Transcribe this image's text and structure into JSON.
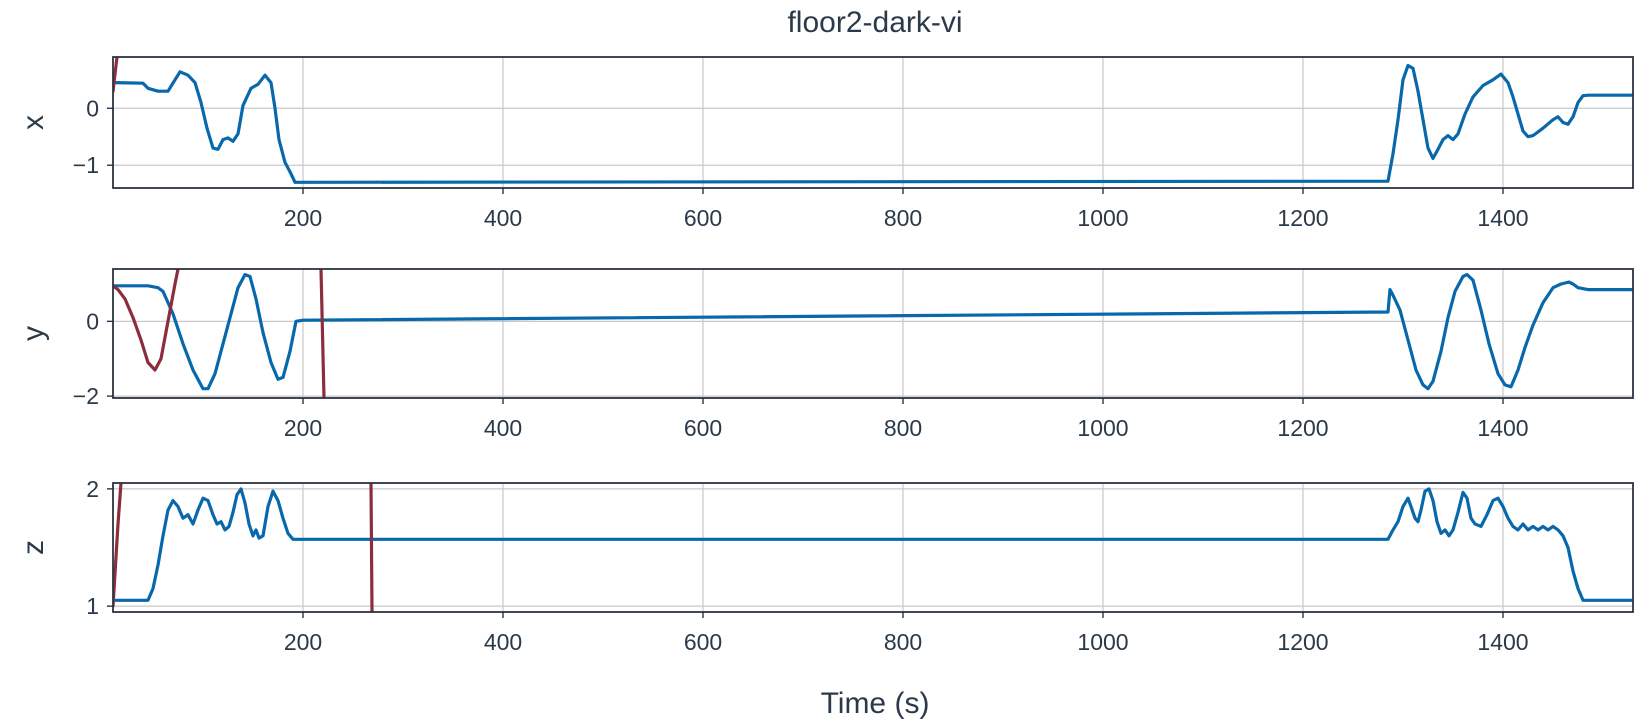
{
  "chart_data": {
    "type": "line",
    "title": "floor2-dark-vi",
    "xlabel": "Time (s)",
    "xlim": [
      10,
      1530
    ],
    "x_ticks": [
      200,
      400,
      600,
      800,
      1000,
      1200,
      1400
    ],
    "grid": true,
    "colors": {
      "series_1": "#0868ac",
      "series_2": "#8c2d3e",
      "text": "#2b3a4a",
      "grid": "#c9c9c9"
    },
    "panels": [
      {
        "ylabel": "x",
        "ylim": [
          -1.4,
          0.9
        ],
        "y_ticks": [
          -1,
          0
        ],
        "series": [
          {
            "color": "#0868ac",
            "points": [
              [
                10,
                0.45
              ],
              [
                40,
                0.44
              ],
              [
                45,
                0.35
              ],
              [
                55,
                0.3
              ],
              [
                65,
                0.3
              ],
              [
                72,
                0.5
              ],
              [
                77,
                0.64
              ],
              [
                85,
                0.58
              ],
              [
                92,
                0.45
              ],
              [
                98,
                0.1
              ],
              [
                104,
                -0.35
              ],
              [
                110,
                -0.7
              ],
              [
                115,
                -0.72
              ],
              [
                120,
                -0.55
              ],
              [
                125,
                -0.52
              ],
              [
                130,
                -0.58
              ],
              [
                135,
                -0.45
              ],
              [
                140,
                0.05
              ],
              [
                148,
                0.35
              ],
              [
                155,
                0.42
              ],
              [
                162,
                0.58
              ],
              [
                168,
                0.45
              ],
              [
                172,
                0.0
              ],
              [
                176,
                -0.55
              ],
              [
                182,
                -0.95
              ],
              [
                188,
                -1.15
              ],
              [
                192,
                -1.3
              ],
              [
                1285,
                -1.28
              ],
              [
                1290,
                -0.8
              ],
              [
                1295,
                -0.2
              ],
              [
                1300,
                0.5
              ],
              [
                1305,
                0.75
              ],
              [
                1310,
                0.7
              ],
              [
                1315,
                0.3
              ],
              [
                1320,
                -0.2
              ],
              [
                1325,
                -0.7
              ],
              [
                1330,
                -0.88
              ],
              [
                1335,
                -0.72
              ],
              [
                1340,
                -0.55
              ],
              [
                1345,
                -0.48
              ],
              [
                1350,
                -0.55
              ],
              [
                1355,
                -0.45
              ],
              [
                1362,
                -0.1
              ],
              [
                1370,
                0.2
              ],
              [
                1380,
                0.4
              ],
              [
                1390,
                0.5
              ],
              [
                1398,
                0.6
              ],
              [
                1405,
                0.45
              ],
              [
                1410,
                0.2
              ],
              [
                1415,
                -0.1
              ],
              [
                1420,
                -0.4
              ],
              [
                1425,
                -0.5
              ],
              [
                1430,
                -0.48
              ],
              [
                1440,
                -0.35
              ],
              [
                1450,
                -0.2
              ],
              [
                1455,
                -0.15
              ],
              [
                1460,
                -0.25
              ],
              [
                1465,
                -0.28
              ],
              [
                1470,
                -0.15
              ],
              [
                1475,
                0.1
              ],
              [
                1480,
                0.22
              ],
              [
                1485,
                0.23
              ],
              [
                1530,
                0.23
              ]
            ]
          },
          {
            "color": "#8c2d3e",
            "points": [
              [
                10,
                0.3
              ],
              [
                12,
                0.6
              ],
              [
                14,
                0.9
              ]
            ]
          }
        ]
      },
      {
        "ylabel": "y",
        "ylim": [
          -2.05,
          1.4
        ],
        "y_ticks": [
          -2,
          0
        ],
        "series": [
          {
            "color": "#0868ac",
            "points": [
              [
                10,
                0.95
              ],
              [
                45,
                0.95
              ],
              [
                55,
                0.9
              ],
              [
                60,
                0.8
              ],
              [
                70,
                0.2
              ],
              [
                80,
                -0.6
              ],
              [
                90,
                -1.3
              ],
              [
                100,
                -1.8
              ],
              [
                105,
                -1.8
              ],
              [
                112,
                -1.4
              ],
              [
                120,
                -0.6
              ],
              [
                128,
                0.2
              ],
              [
                135,
                0.9
              ],
              [
                142,
                1.25
              ],
              [
                147,
                1.2
              ],
              [
                153,
                0.6
              ],
              [
                160,
                -0.3
              ],
              [
                168,
                -1.1
              ],
              [
                175,
                -1.55
              ],
              [
                180,
                -1.5
              ],
              [
                187,
                -0.8
              ],
              [
                193,
                0.0
              ],
              [
                200,
                0.03
              ],
              [
                1285,
                0.25
              ],
              [
                1287,
                0.85
              ],
              [
                1290,
                0.7
              ],
              [
                1297,
                0.3
              ],
              [
                1305,
                -0.5
              ],
              [
                1313,
                -1.3
              ],
              [
                1320,
                -1.7
              ],
              [
                1325,
                -1.8
              ],
              [
                1330,
                -1.6
              ],
              [
                1338,
                -0.8
              ],
              [
                1345,
                0.1
              ],
              [
                1352,
                0.8
              ],
              [
                1360,
                1.2
              ],
              [
                1364,
                1.25
              ],
              [
                1370,
                1.1
              ],
              [
                1378,
                0.3
              ],
              [
                1386,
                -0.6
              ],
              [
                1395,
                -1.4
              ],
              [
                1402,
                -1.7
              ],
              [
                1408,
                -1.75
              ],
              [
                1415,
                -1.3
              ],
              [
                1422,
                -0.7
              ],
              [
                1430,
                -0.1
              ],
              [
                1440,
                0.5
              ],
              [
                1450,
                0.9
              ],
              [
                1458,
                1.0
              ],
              [
                1466,
                1.05
              ],
              [
                1470,
                1.0
              ],
              [
                1475,
                0.9
              ],
              [
                1485,
                0.85
              ],
              [
                1530,
                0.85
              ]
            ]
          },
          {
            "color": "#8c2d3e",
            "points": [
              [
                10,
                0.95
              ],
              [
                15,
                0.85
              ],
              [
                22,
                0.6
              ],
              [
                30,
                0.1
              ],
              [
                38,
                -0.5
              ],
              [
                45,
                -1.1
              ],
              [
                52,
                -1.3
              ],
              [
                58,
                -1.0
              ],
              [
                65,
                0.0
              ],
              [
                72,
                1.0
              ],
              [
                75,
                1.4
              ]
            ]
          },
          {
            "color": "#8c2d3e",
            "points": [
              [
                218,
                1.4
              ],
              [
                221,
                -2.05
              ]
            ]
          }
        ]
      },
      {
        "ylabel": "z",
        "ylim": [
          0.95,
          2.05
        ],
        "y_ticks": [
          1,
          2
        ],
        "series": [
          {
            "color": "#0868ac",
            "points": [
              [
                10,
                1.05
              ],
              [
                45,
                1.05
              ],
              [
                50,
                1.15
              ],
              [
                55,
                1.35
              ],
              [
                60,
                1.6
              ],
              [
                65,
                1.82
              ],
              [
                70,
                1.9
              ],
              [
                75,
                1.85
              ],
              [
                80,
                1.75
              ],
              [
                85,
                1.78
              ],
              [
                90,
                1.7
              ],
              [
                95,
                1.82
              ],
              [
                100,
                1.92
              ],
              [
                105,
                1.9
              ],
              [
                110,
                1.78
              ],
              [
                114,
                1.7
              ],
              [
                118,
                1.72
              ],
              [
                122,
                1.65
              ],
              [
                126,
                1.68
              ],
              [
                130,
                1.8
              ],
              [
                134,
                1.95
              ],
              [
                138,
                2.0
              ],
              [
                142,
                1.88
              ],
              [
                146,
                1.7
              ],
              [
                150,
                1.6
              ],
              [
                153,
                1.65
              ],
              [
                156,
                1.58
              ],
              [
                160,
                1.6
              ],
              [
                165,
                1.85
              ],
              [
                170,
                1.98
              ],
              [
                175,
                1.9
              ],
              [
                180,
                1.75
              ],
              [
                185,
                1.62
              ],
              [
                190,
                1.57
              ],
              [
                200,
                1.57
              ],
              [
                1285,
                1.57
              ],
              [
                1290,
                1.65
              ],
              [
                1295,
                1.72
              ],
              [
                1300,
                1.85
              ],
              [
                1305,
                1.92
              ],
              [
                1308,
                1.85
              ],
              [
                1312,
                1.75
              ],
              [
                1315,
                1.72
              ],
              [
                1318,
                1.82
              ],
              [
                1322,
                1.98
              ],
              [
                1326,
                2.0
              ],
              [
                1330,
                1.9
              ],
              [
                1334,
                1.72
              ],
              [
                1338,
                1.62
              ],
              [
                1342,
                1.65
              ],
              [
                1346,
                1.6
              ],
              [
                1350,
                1.65
              ],
              [
                1355,
                1.8
              ],
              [
                1360,
                1.97
              ],
              [
                1364,
                1.92
              ],
              [
                1368,
                1.75
              ],
              [
                1372,
                1.7
              ],
              [
                1378,
                1.68
              ],
              [
                1384,
                1.78
              ],
              [
                1390,
                1.9
              ],
              [
                1395,
                1.92
              ],
              [
                1400,
                1.85
              ],
              [
                1405,
                1.75
              ],
              [
                1410,
                1.68
              ],
              [
                1415,
                1.65
              ],
              [
                1420,
                1.7
              ],
              [
                1425,
                1.65
              ],
              [
                1430,
                1.68
              ],
              [
                1435,
                1.65
              ],
              [
                1440,
                1.68
              ],
              [
                1445,
                1.65
              ],
              [
                1450,
                1.68
              ],
              [
                1455,
                1.65
              ],
              [
                1460,
                1.6
              ],
              [
                1465,
                1.5
              ],
              [
                1470,
                1.3
              ],
              [
                1475,
                1.15
              ],
              [
                1480,
                1.05
              ],
              [
                1485,
                1.05
              ],
              [
                1530,
                1.05
              ]
            ]
          },
          {
            "color": "#8c2d3e",
            "points": [
              [
                10,
                1.0
              ],
              [
                15,
                1.7
              ],
              [
                18,
                2.05
              ]
            ]
          },
          {
            "color": "#8c2d3e",
            "points": [
              [
                268,
                2.05
              ],
              [
                269,
                0.95
              ]
            ]
          }
        ]
      }
    ]
  }
}
